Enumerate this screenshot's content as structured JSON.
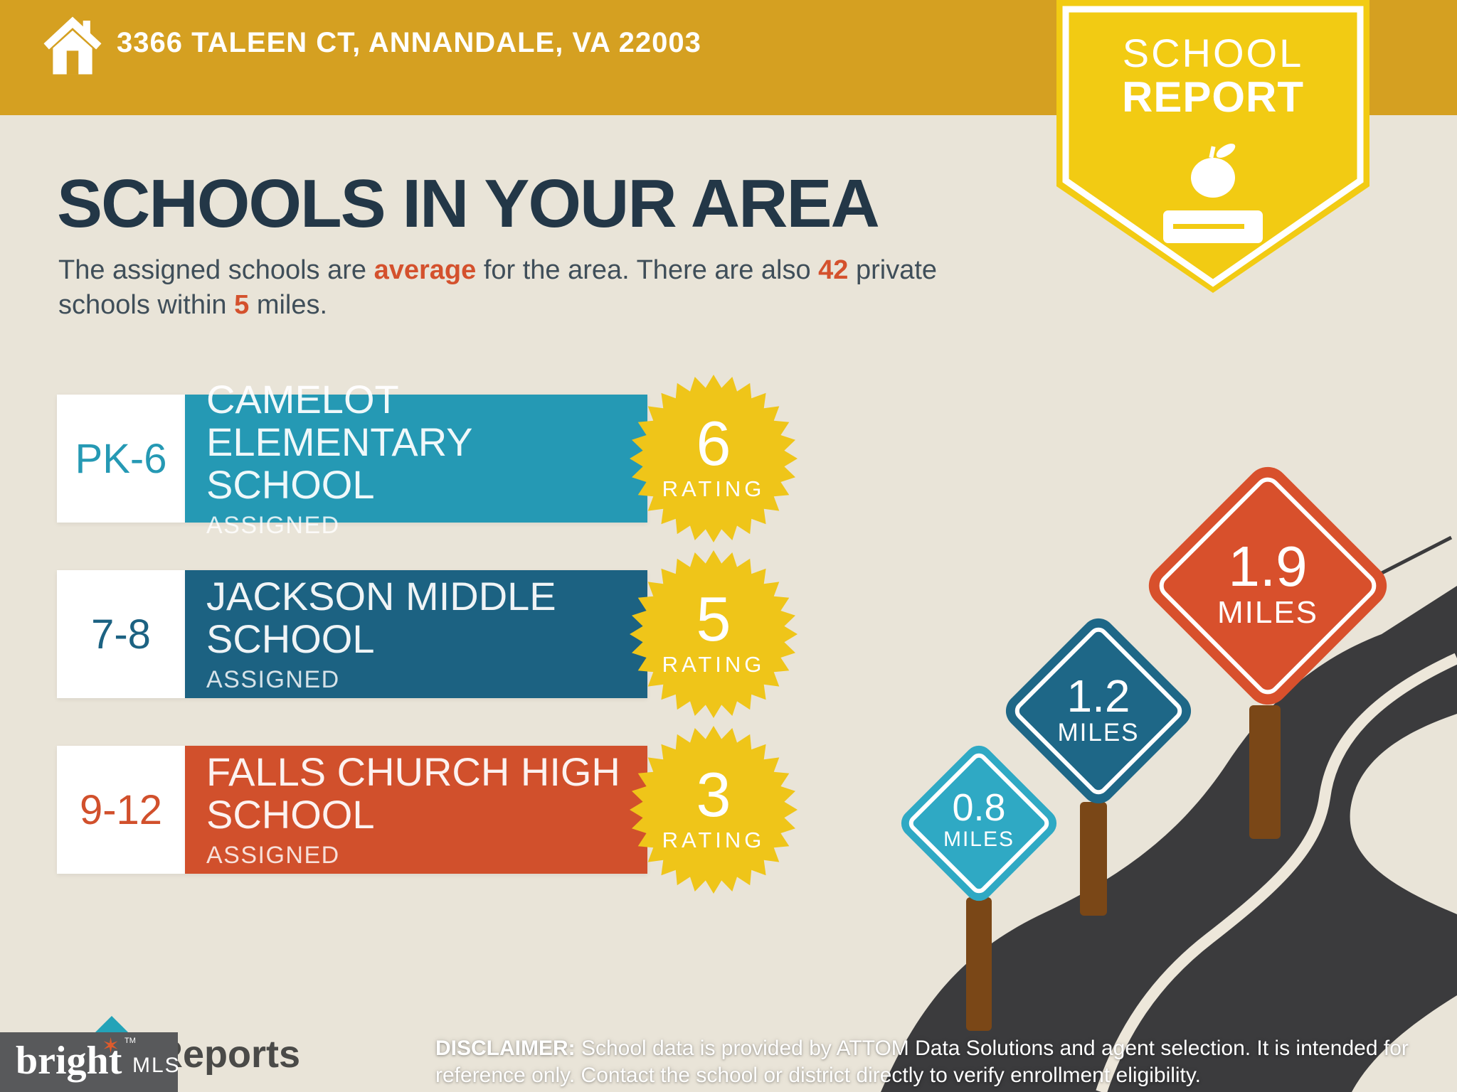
{
  "header": {
    "address": "3366 TALEEN CT, ANNANDALE, VA 22003"
  },
  "ribbon": {
    "title_line1": "SCHOOL",
    "title_line2": "REPORT"
  },
  "main": {
    "title": "SCHOOLS IN YOUR AREA",
    "intro": {
      "seg1": "The assigned schools are ",
      "accent1": "average",
      "seg2": " for the area. There are also ",
      "accent2": "42",
      "seg3": " private schools within ",
      "accent3": "5",
      "seg4": " miles."
    }
  },
  "labels": {
    "rating": "RATING"
  },
  "schools": [
    {
      "grades": "PK-6",
      "name": "CAMELOT ELEMENTARY SCHOOL",
      "status": "ASSIGNED",
      "rating": "6",
      "color": "#2599B4"
    },
    {
      "grades": "7-8",
      "name": "JACKSON MIDDLE SCHOOL",
      "status": "ASSIGNED",
      "rating": "5",
      "color": "#1C6282"
    },
    {
      "grades": "9-12",
      "name": "FALLS CHURCH HIGH SCHOOL",
      "status": "ASSIGNED",
      "rating": "3",
      "color": "#D1502C"
    }
  ],
  "distance_signs": [
    {
      "distance": "0.8",
      "unit": "MILES",
      "color": "#2FA9C4"
    },
    {
      "distance": "1.2",
      "unit": "MILES",
      "color": "#1E6787"
    },
    {
      "distance": "1.9",
      "unit": "MILES",
      "color": "#D8502C"
    }
  ],
  "footer": {
    "disclaimer_label": "DISCLAIMER:",
    "disclaimer_text": " School data is provided by ATTOM Data Solutions and agent selection. It is intended for reference only. Contact the school or district directly to verify enrollment eligibility.",
    "brand": "bright",
    "brand_mls": "MLS",
    "brand_tm": "TM",
    "reports_logo": "Reports"
  },
  "colors": {
    "topbar_gold": "#D5A021",
    "ribbon_yellow": "#F2CB13",
    "badge_yellow": "#EFC519",
    "background": "#E9E4D8",
    "heading_navy": "#233747",
    "accent_orange": "#D4512D",
    "road_charcoal": "#3B3B3D",
    "road_line_cream": "#EDE7DA",
    "post_brown": "#7A4717"
  }
}
